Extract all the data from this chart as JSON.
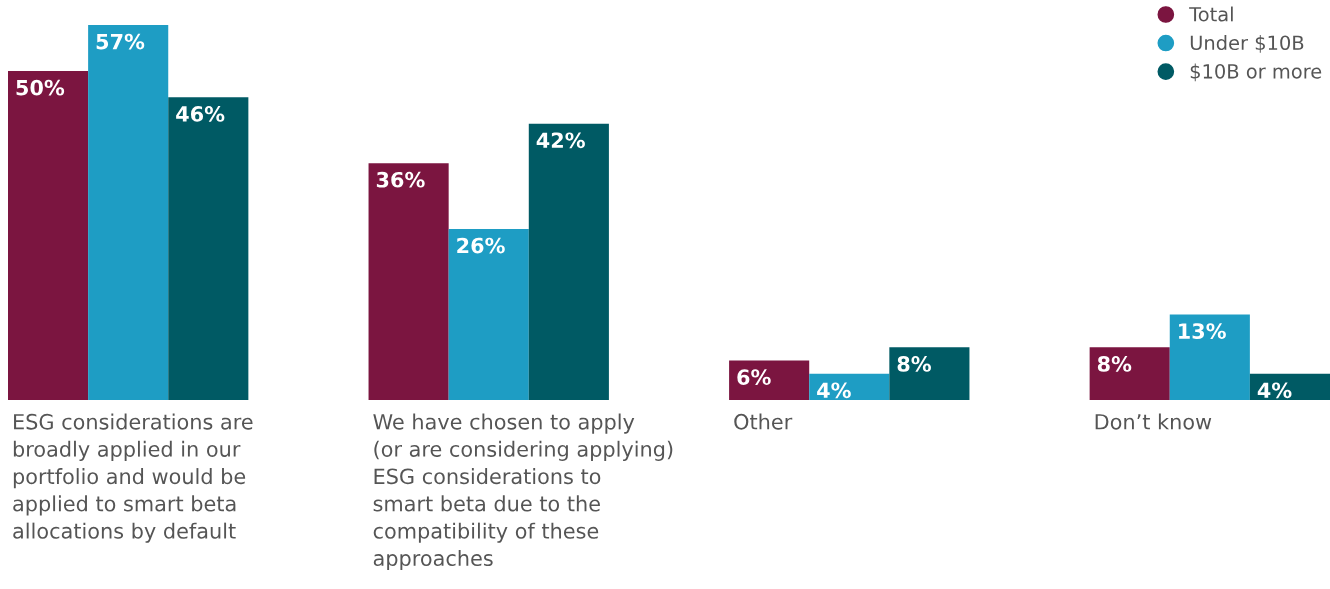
{
  "chart_data": {
    "type": "bar",
    "categories": [
      "ESG considerations are\nbroadly applied in our\nportfolio and would be\napplied to smart beta\nallocations by default",
      "We have chosen to apply\n(or are considering applying)\nESG considerations to\nsmart beta due to the\ncompatibility of these\napproaches",
      "Other",
      "Don’t know"
    ],
    "series": [
      {
        "name": "Total",
        "color": "#7b1540",
        "values": [
          50,
          36,
          6,
          8
        ],
        "value_labels": [
          "50%",
          "36%",
          "6%",
          "8%"
        ]
      },
      {
        "name": "Under $10B",
        "color": "#1e9dc4",
        "values": [
          57,
          26,
          4,
          13
        ],
        "value_labels": [
          "57%",
          "26%",
          "4%",
          "13%"
        ]
      },
      {
        "name": "$10B or more",
        "color": "#005a64",
        "values": [
          46,
          42,
          8,
          4
        ],
        "value_labels": [
          "46%",
          "42%",
          "8%",
          "4%"
        ]
      }
    ],
    "legend": "top right"
  }
}
